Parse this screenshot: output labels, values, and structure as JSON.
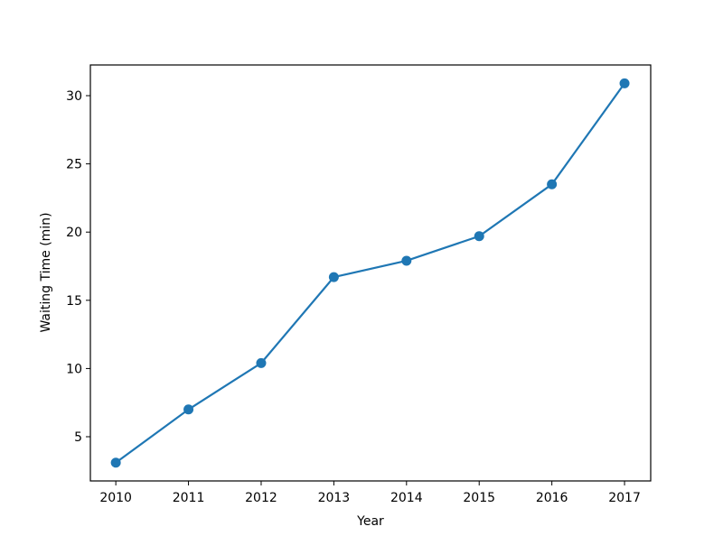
{
  "chart_data": {
    "type": "line",
    "x_label": "Year",
    "y_label": "Waiting Time (min)",
    "x": [
      2010,
      2011,
      2012,
      2013,
      2014,
      2015,
      2016,
      2017
    ],
    "series": [
      {
        "name": "Waiting Time",
        "color": "#1f77b4",
        "values": [
          3.1,
          7.0,
          10.4,
          16.7,
          17.9,
          19.7,
          23.5,
          30.9
        ]
      }
    ],
    "xlim": [
      2009.65,
      2017.36
    ],
    "xticks": [
      2010,
      2011,
      2012,
      2013,
      2014,
      2015,
      2016,
      2017
    ],
    "ylim": [
      1.76,
      32.25
    ],
    "yticks": [
      5,
      10,
      15,
      20,
      25,
      30
    ],
    "markers": true,
    "grid": false
  }
}
